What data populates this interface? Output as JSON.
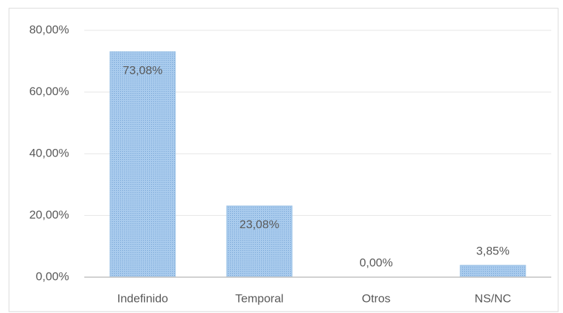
{
  "chart_data": {
    "type": "bar",
    "categories": [
      "Indefinido",
      "Temporal",
      "Otros",
      "NS/NC"
    ],
    "values": [
      73.08,
      23.08,
      0,
      3.85
    ],
    "value_labels": [
      "73,08%",
      "23,08%",
      "0,00%",
      "3,85%"
    ],
    "color": "#9dc3e6",
    "ylim": [
      0,
      80
    ],
    "yticks": [
      {
        "value": 0,
        "label": "0,00%"
      },
      {
        "value": 20,
        "label": "20,00%"
      },
      {
        "value": 40,
        "label": "40,00%"
      },
      {
        "value": 60,
        "label": "60,00%"
      },
      {
        "value": 80,
        "label": "80,00%"
      }
    ],
    "grid": true
  }
}
